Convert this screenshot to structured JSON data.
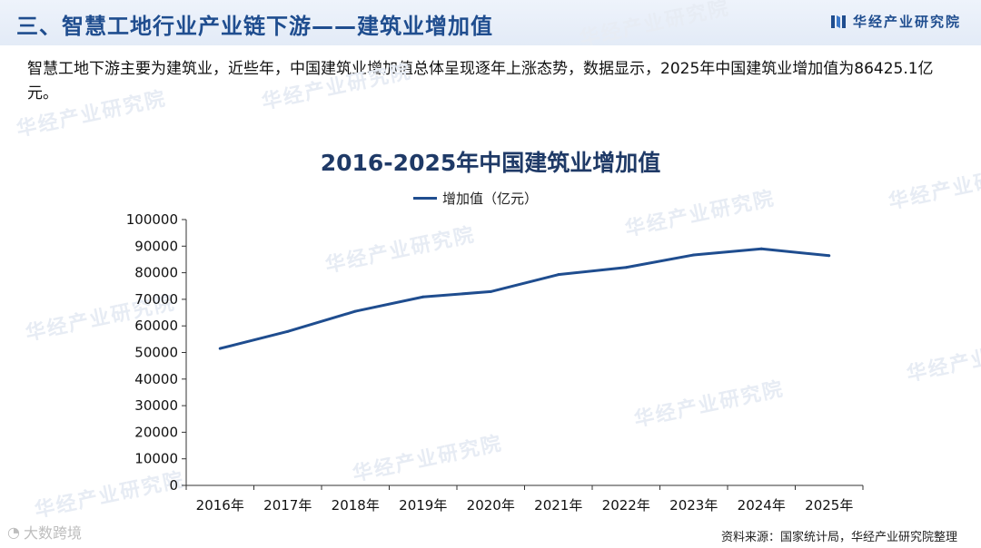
{
  "header": {
    "title": "三、智慧工地行业产业链下游——建筑业增加值",
    "brand": "华经产业研究院"
  },
  "intro": "智慧工地下游主要为建筑业，近些年，中国建筑业增加值总体呈现逐年上涨态势，数据显示，2025年中国建筑业增加值为86425.1亿元。",
  "chart_data": {
    "type": "line",
    "title": "2016-2025年中国建筑业增加值",
    "categories": [
      "2016年",
      "2017年",
      "2018年",
      "2019年",
      "2020年",
      "2021年",
      "2022年",
      "2023年",
      "2024年",
      "2025年"
    ],
    "series": [
      {
        "name": "增加值（亿元）",
        "values": [
          51500,
          57900,
          65500,
          70900,
          72900,
          79300,
          82000,
          86700,
          89000,
          86425.1
        ],
        "color": "#1f4d8f"
      }
    ],
    "y_ticks": [
      "0",
      "10000",
      "20000",
      "30000",
      "40000",
      "50000",
      "60000",
      "70000",
      "80000",
      "90000",
      "100000"
    ],
    "ylim": [
      0,
      100000
    ],
    "grid": false,
    "legend": "top-center"
  },
  "source": "资料来源：国家统计局，华经产业研究院整理",
  "watermark": "华经产业研究院",
  "corner_mark": "大数跨境"
}
